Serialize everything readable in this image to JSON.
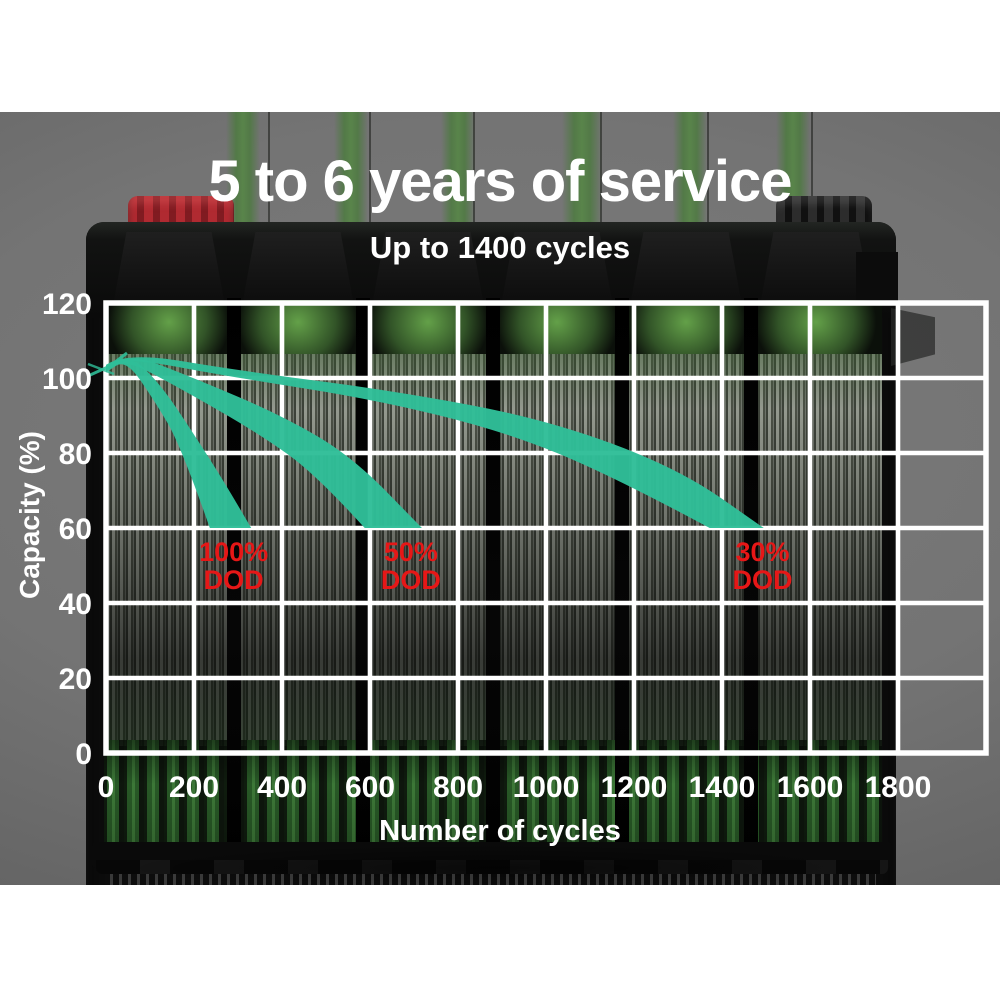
{
  "header": {
    "title": "5 to 6 years of service",
    "subtitle": "Up to 1400 cycles"
  },
  "chart_data": {
    "type": "area",
    "title": "5 to 6 years of service",
    "subtitle": "Up to 1400 cycles",
    "xlabel": "Number of cycles",
    "ylabel": "Capacity (%)",
    "xlim": [
      0,
      2000
    ],
    "ylim": [
      0,
      120
    ],
    "x_tick_step": 200,
    "y_tick_step": 20,
    "x_ticks": [
      0,
      200,
      400,
      600,
      800,
      1000,
      1200,
      1400,
      1600,
      1800
    ],
    "y_ticks": [
      120,
      100,
      80,
      60,
      40,
      20,
      0
    ],
    "grid": true,
    "grid_color": "#ffffff",
    "band_color": "#2fbe98",
    "annotation_color": "#e61717",
    "start_capacity_pct": 105,
    "series": [
      {
        "name": "100% DOD",
        "cycles_to_60pct": 330,
        "upper": [
          [
            0,
            102.5
          ],
          [
            45,
            107
          ],
          [
            120,
            99
          ],
          [
            200,
            85
          ],
          [
            270,
            72
          ],
          [
            330,
            60
          ]
        ],
        "lower": [
          [
            0,
            101.5
          ],
          [
            45,
            105
          ],
          [
            110,
            94
          ],
          [
            170,
            82
          ],
          [
            236,
            60
          ]
        ],
        "label": {
          "lines": [
            "100%",
            "DOD"
          ],
          "x_cycles": 290,
          "y_capacity": 50
        }
      },
      {
        "name": "50% DOD",
        "cycles_to_60pct": 718,
        "upper": [
          [
            0,
            103
          ],
          [
            45,
            107
          ],
          [
            200,
            100
          ],
          [
            400,
            90
          ],
          [
            560,
            79
          ],
          [
            718,
            60
          ]
        ],
        "lower": [
          [
            0,
            102
          ],
          [
            45,
            105
          ],
          [
            180,
            96.5
          ],
          [
            350,
            85
          ],
          [
            480,
            74
          ],
          [
            588,
            60
          ]
        ],
        "label": {
          "lines": [
            "50%",
            "DOD"
          ],
          "x_cycles": 693,
          "y_capacity": 50
        }
      },
      {
        "name": "30% DOD",
        "cycles_to_60pct": 1495,
        "upper": [
          [
            0,
            103.5
          ],
          [
            45,
            107
          ],
          [
            300,
            102
          ],
          [
            660,
            96.5
          ],
          [
            1000,
            89
          ],
          [
            1300,
            76
          ],
          [
            1495,
            60
          ]
        ],
        "lower": [
          [
            0,
            102.5
          ],
          [
            45,
            105.5
          ],
          [
            300,
            100
          ],
          [
            600,
            94.5
          ],
          [
            900,
            86
          ],
          [
            1150,
            74
          ],
          [
            1372,
            60
          ]
        ],
        "label": {
          "lines": [
            "30%",
            "DOD"
          ],
          "x_cycles": 1492,
          "y_capacity": 50
        }
      }
    ]
  },
  "colors": {
    "backdrop_gray": "#747474",
    "page_margin": "#ffffff",
    "battery_black": "#0d0d0d",
    "cell_glow_green": "#68a84c",
    "beam_green": "#4d7a40",
    "terminal_red": "#b02a31",
    "text_white": "#ffffff"
  }
}
